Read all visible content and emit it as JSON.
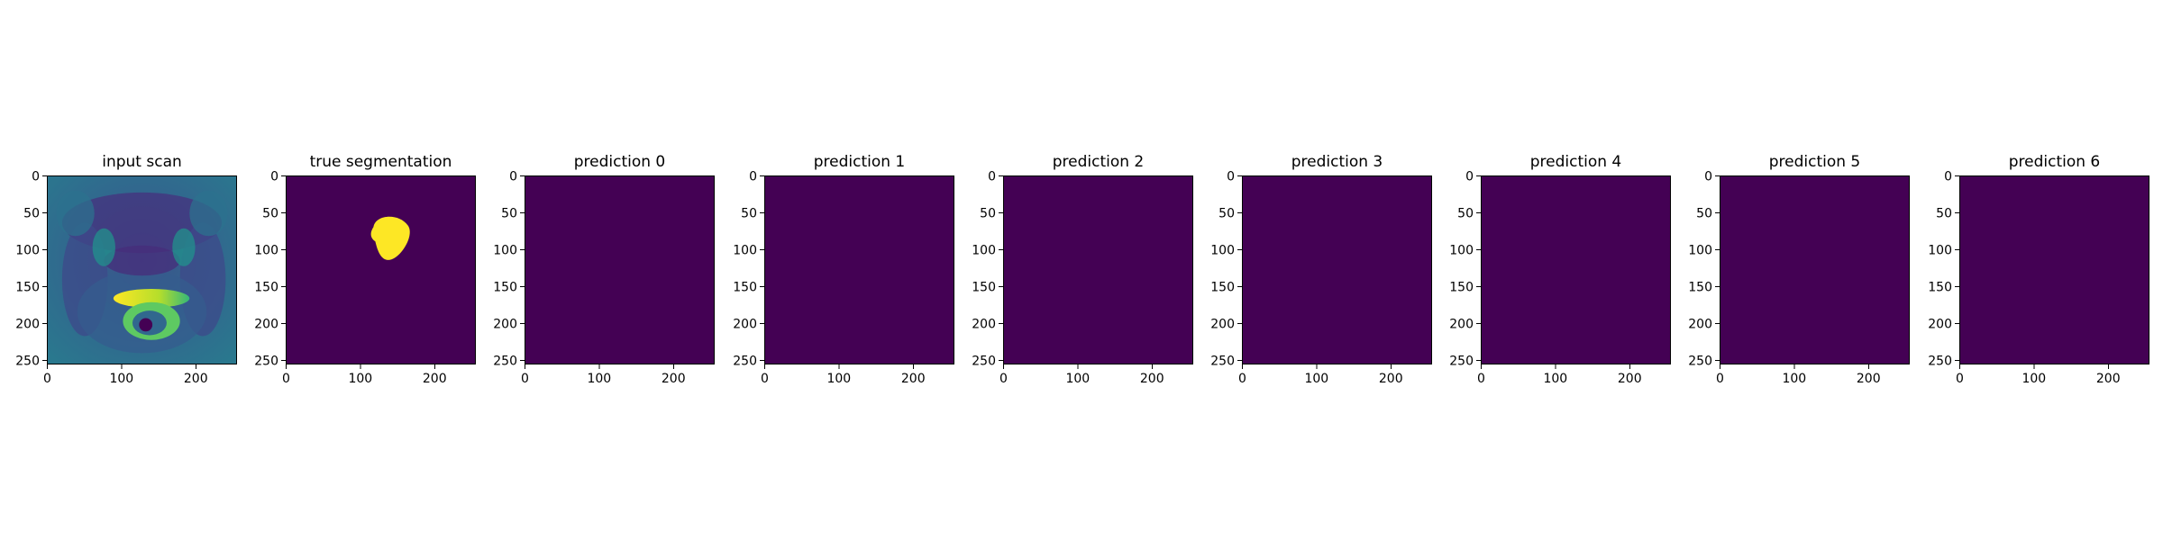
{
  "figure": {
    "panels": [
      {
        "title": "input scan",
        "image": "mri-prostate-scan"
      },
      {
        "title": "true segmentation",
        "image": "segmentation-mask"
      },
      {
        "title": "prediction 0",
        "image": "empty-prediction"
      },
      {
        "title": "prediction 1",
        "image": "empty-prediction"
      },
      {
        "title": "prediction 2",
        "image": "empty-prediction"
      },
      {
        "title": "prediction 3",
        "image": "empty-prediction"
      },
      {
        "title": "prediction 4",
        "image": "empty-prediction"
      },
      {
        "title": "prediction 5",
        "image": "empty-prediction"
      },
      {
        "title": "prediction 6",
        "image": "empty-prediction"
      }
    ],
    "x_ticks": [
      "0",
      "100",
      "200"
    ],
    "y_ticks": [
      "0",
      "50",
      "100",
      "150",
      "200",
      "250"
    ],
    "colors": {
      "background_class": "#440154",
      "foreground_class": "#fde725",
      "scan_low": "#3b528b",
      "scan_mid": "#21918c",
      "scan_high": "#5ec962"
    }
  }
}
